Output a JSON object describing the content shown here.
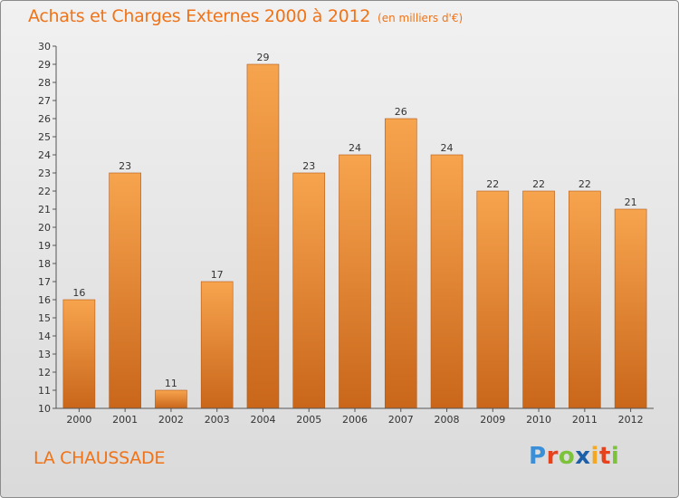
{
  "chart_data": {
    "type": "bar",
    "title": "Achats et Charges Externes 2000 à 2012",
    "subtitle": "(en milliers d'€)",
    "categories": [
      "2000",
      "2001",
      "2002",
      "2003",
      "2004",
      "2005",
      "2006",
      "2007",
      "2008",
      "2009",
      "2010",
      "2011",
      "2012"
    ],
    "values": [
      16,
      23,
      11,
      17,
      29,
      23,
      24,
      26,
      24,
      22,
      22,
      22,
      21
    ],
    "ylim": [
      10,
      30
    ],
    "yticks": [
      10,
      11,
      12,
      13,
      14,
      15,
      16,
      17,
      18,
      19,
      20,
      21,
      22,
      23,
      24,
      25,
      26,
      27,
      28,
      29,
      30
    ],
    "grid": false,
    "bar_color": "#f08a2c"
  },
  "footer": {
    "location": "LA CHAUSSADE"
  },
  "logo": {
    "text": "Proxiti",
    "letter_colors": [
      "#3a8fd8",
      "#e8421c",
      "#7cc23a",
      "#1c5fa8",
      "#f5a81f",
      "#e8421c",
      "#7cc23a"
    ]
  }
}
